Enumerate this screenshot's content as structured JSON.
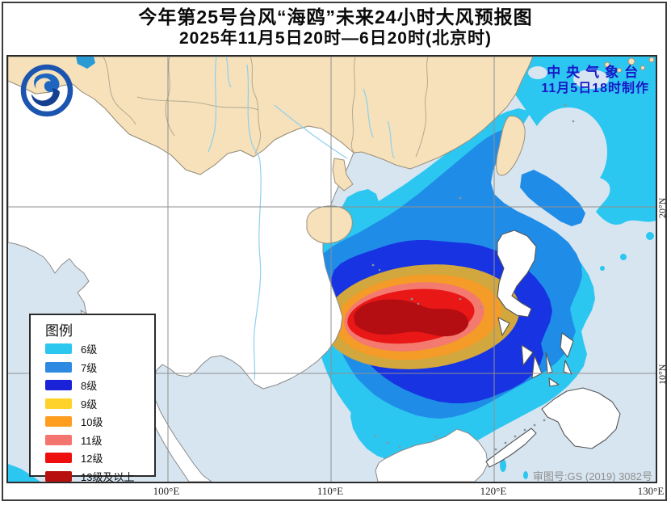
{
  "title": {
    "line1": "今年第25号台风“海鸥”未来24小时大风预报图",
    "line2": "2025年11月5日20时—6日20时(北京时)"
  },
  "agency": {
    "name": "中央气象台",
    "issued": "11月5日18时制作",
    "text_color": "#1818c8"
  },
  "license": "审图号:GS (2019) 3082号",
  "axis": {
    "lon_labels": [
      "100°E",
      "110°E",
      "120°E",
      "130°E"
    ],
    "lat_labels": [
      "20°N",
      "10°N"
    ]
  },
  "legend": {
    "title": "图例",
    "items": [
      {
        "label": "6级",
        "color": "#2bc7ef"
      },
      {
        "label": "7级",
        "color": "#2e8ae0"
      },
      {
        "label": "8级",
        "color": "#1a22d8"
      },
      {
        "label": "9级",
        "color": "#ffd22b"
      },
      {
        "label": "10级",
        "color": "#ff9d1f"
      },
      {
        "label": "11级",
        "color": "#f3756e"
      },
      {
        "label": "12级",
        "color": "#ee0e0e"
      },
      {
        "label": "13级及以上",
        "color": "#b80f0f"
      }
    ]
  },
  "map_palette": {
    "sea": "#d7e5f1",
    "china": "#f6e1ba",
    "foreign": "#ffffff",
    "w6": "#2cc7f0",
    "w7": "#1f8de8",
    "w8": "#1733e2",
    "w9": "#d1a73e",
    "w10": "#f59b28",
    "w11": "#f4796f",
    "w12": "#ea1717",
    "w13": "#b40e12"
  }
}
